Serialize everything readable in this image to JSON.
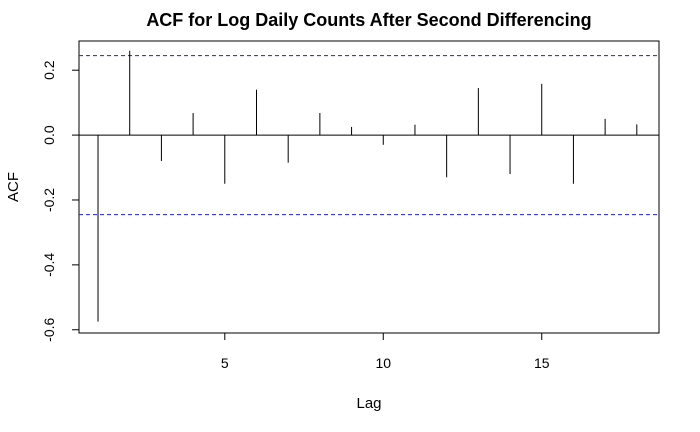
{
  "chart_data": {
    "type": "bar",
    "style": "acf-stem",
    "title": "ACF for Log Daily Counts After Second Differencing",
    "xlabel": "Lag",
    "ylabel": "ACF",
    "xlim": [
      0.4,
      18.7
    ],
    "ylim": [
      -0.61,
      0.29
    ],
    "xticks": [
      5,
      10,
      15
    ],
    "yticks": [
      0.2,
      0.0,
      -0.2,
      -0.4,
      -0.6
    ],
    "ytick_labels": [
      "0.2",
      "0.0",
      "-0.2",
      "-0.4",
      "-0.6"
    ],
    "confidence_bound": 0.245,
    "lags": [
      1,
      2,
      3,
      4,
      5,
      6,
      7,
      8,
      9,
      10,
      11,
      12,
      13,
      14,
      15,
      16,
      17,
      18
    ],
    "values": [
      -0.575,
      0.26,
      -0.08,
      0.068,
      -0.15,
      0.14,
      -0.085,
      0.068,
      0.025,
      -0.03,
      0.032,
      -0.13,
      0.145,
      -0.12,
      0.158,
      -0.15,
      0.05,
      0.033
    ],
    "colors": {
      "stem": "#000000",
      "bound": "#1f1fcf",
      "zero": "#000000"
    },
    "grid": false
  }
}
